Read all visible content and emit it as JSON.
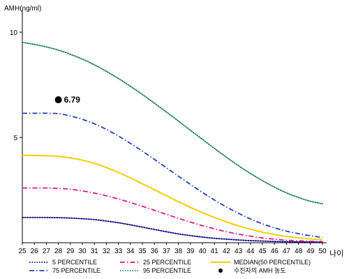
{
  "chart_data": {
    "type": "line",
    "title": "",
    "ylabel": "AMH(ng/ml)",
    "xlabel": "나이",
    "ylim": [
      0,
      10.8
    ],
    "xlim": [
      25,
      50
    ],
    "y_ticks": [
      5,
      10
    ],
    "x_ticks": [
      25,
      26,
      27,
      28,
      29,
      30,
      31,
      32,
      33,
      34,
      35,
      36,
      37,
      38,
      39,
      40,
      41,
      42,
      43,
      44,
      45,
      46,
      47,
      48,
      49,
      50
    ],
    "grid": false,
    "legend_position": "bottom",
    "series": [
      {
        "name": "5 PERCENTILE",
        "color": "#000080",
        "dash": "dotted",
        "x": [
          25,
          26,
          27,
          28,
          29,
          30,
          31,
          32,
          33,
          34,
          35,
          36,
          37,
          38,
          39,
          40,
          41,
          42,
          43,
          44,
          45,
          46,
          47,
          48,
          49,
          50
        ],
        "y": [
          1.2,
          1.2,
          1.2,
          1.19,
          1.17,
          1.14,
          1.1,
          1.03,
          0.95,
          0.85,
          0.74,
          0.63,
          0.52,
          0.42,
          0.34,
          0.27,
          0.21,
          0.17,
          0.13,
          0.1,
          0.08,
          0.06,
          0.05,
          0.04,
          0.04,
          0.03
        ]
      },
      {
        "name": "25 PERCENTILE",
        "color": "#e0168c",
        "dash": "dashdot",
        "x": [
          25,
          26,
          27,
          28,
          29,
          30,
          31,
          32,
          33,
          34,
          35,
          36,
          37,
          38,
          39,
          40,
          41,
          42,
          43,
          44,
          45,
          46,
          47,
          48,
          49,
          50
        ],
        "y": [
          2.6,
          2.6,
          2.6,
          2.58,
          2.54,
          2.46,
          2.36,
          2.23,
          2.08,
          1.91,
          1.73,
          1.54,
          1.35,
          1.16,
          0.98,
          0.81,
          0.66,
          0.52,
          0.41,
          0.31,
          0.23,
          0.17,
          0.12,
          0.09,
          0.07,
          0.06
        ]
      },
      {
        "name": "MEDIAN(50 PERCENTILE)",
        "color": "#f2d000",
        "dash": "solid",
        "x": [
          25,
          26,
          27,
          28,
          29,
          30,
          31,
          32,
          33,
          34,
          35,
          36,
          37,
          38,
          39,
          40,
          41,
          42,
          43,
          44,
          45,
          46,
          47,
          48,
          49,
          50
        ],
        "y": [
          4.15,
          4.15,
          4.13,
          4.1,
          4.03,
          3.92,
          3.77,
          3.57,
          3.34,
          3.08,
          2.8,
          2.52,
          2.23,
          1.95,
          1.68,
          1.43,
          1.2,
          0.99,
          0.8,
          0.64,
          0.5,
          0.39,
          0.3,
          0.23,
          0.18,
          0.15
        ]
      },
      {
        "name": "75 PERCENTILE",
        "color": "#2040c0",
        "dash": "dashdot",
        "x": [
          25,
          26,
          27,
          28,
          29,
          30,
          31,
          32,
          33,
          34,
          35,
          36,
          37,
          38,
          39,
          40,
          41,
          42,
          43,
          44,
          45,
          46,
          47,
          48,
          49,
          50
        ],
        "y": [
          6.15,
          6.15,
          6.15,
          6.13,
          6.02,
          5.86,
          5.65,
          5.38,
          5.07,
          4.72,
          4.35,
          3.96,
          3.56,
          3.16,
          2.77,
          2.39,
          2.03,
          1.7,
          1.4,
          1.13,
          0.9,
          0.71,
          0.55,
          0.43,
          0.33,
          0.25
        ]
      },
      {
        "name": "95 PERCENTILE",
        "color": "#208050",
        "dash": "dotted",
        "x": [
          25,
          26,
          27,
          28,
          29,
          30,
          31,
          32,
          33,
          34,
          35,
          36,
          37,
          38,
          39,
          40,
          41,
          42,
          43,
          44,
          45,
          46,
          47,
          48,
          49,
          50
        ],
        "y": [
          9.52,
          9.42,
          9.3,
          9.15,
          8.95,
          8.72,
          8.45,
          8.14,
          7.8,
          7.43,
          7.04,
          6.63,
          6.21,
          5.78,
          5.34,
          4.91,
          4.48,
          4.06,
          3.66,
          3.29,
          2.95,
          2.64,
          2.37,
          2.15,
          1.97,
          1.85
        ]
      }
    ],
    "points": [
      {
        "name": "수진자의 AMH 농도",
        "x": 28,
        "y": 6.79,
        "label": "6.79",
        "color": "#000000"
      }
    ]
  }
}
